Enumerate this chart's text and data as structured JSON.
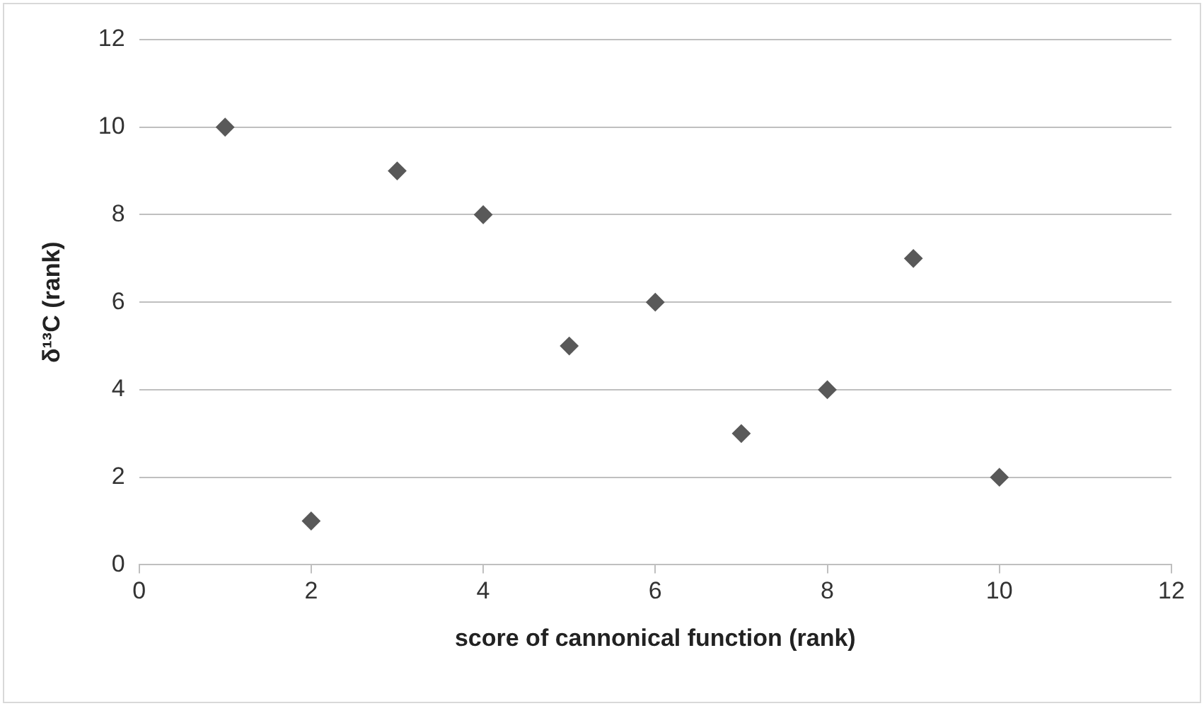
{
  "chart_data": {
    "type": "scatter",
    "xlabel": "score of cannonical function (rank)",
    "ylabel": "δ¹³C (rank)",
    "x": [
      1,
      2,
      3,
      4,
      5,
      6,
      7,
      8,
      9,
      10
    ],
    "values": [
      10,
      1,
      9,
      8,
      5,
      6,
      3,
      4,
      7,
      2
    ],
    "color": "#595959",
    "marker": "diamond",
    "xlim": [
      0,
      12
    ],
    "xticks": [
      0,
      2,
      4,
      6,
      8,
      10,
      12
    ],
    "ylim": [
      0,
      12
    ],
    "yticks": [
      0,
      2,
      4,
      6,
      8,
      10,
      12
    ],
    "grid": "y"
  }
}
